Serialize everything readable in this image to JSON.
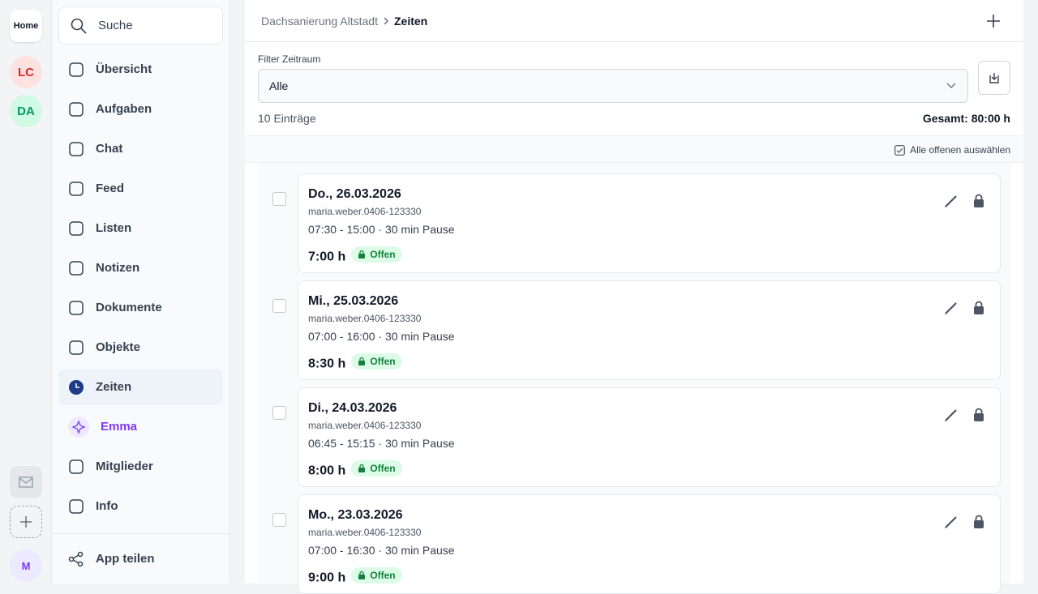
{
  "rail": {
    "home": "Home",
    "workspaces": [
      "LC",
      "DA"
    ],
    "user": "M"
  },
  "search": "Suche",
  "nav": [
    "Übersicht",
    "Aufgaben",
    "Chat",
    "Feed",
    "Listen",
    "Notizen",
    "Dokumente",
    "Objekte",
    "Zeiten",
    "Emma",
    "Mitglieder",
    "Info"
  ],
  "share": "App teilen",
  "breadcrumb": {
    "parent": "Dachsanierung Altstadt",
    "current": "Zeiten"
  },
  "filter": {
    "label": "Filter Zeitraum",
    "value": "Alle"
  },
  "count": "10 Einträge",
  "total": "Gesamt: 80:00 h",
  "select_all": "Alle offenen auswählen",
  "entries": [
    {
      "date": "Do., 26.03.2026",
      "user": "maria.weber.0406-123330",
      "time": "07:30 - 15:00 · 30 min Pause",
      "hours": "7:00 h",
      "status": "Offen"
    },
    {
      "date": "Mi., 25.03.2026",
      "user": "maria.weber.0406-123330",
      "time": "07:00 - 16:00 · 30 min Pause",
      "hours": "8:30 h",
      "status": "Offen"
    },
    {
      "date": "Di., 24.03.2026",
      "user": "maria.weber.0406-123330",
      "time": "06:45 - 15:15 · 30 min Pause",
      "hours": "8:00 h",
      "status": "Offen"
    },
    {
      "date": "Mo., 23.03.2026",
      "user": "maria.weber.0406-123330",
      "time": "07:00 - 16:30 · 30 min Pause",
      "hours": "9:00 h",
      "status": "Offen"
    }
  ]
}
